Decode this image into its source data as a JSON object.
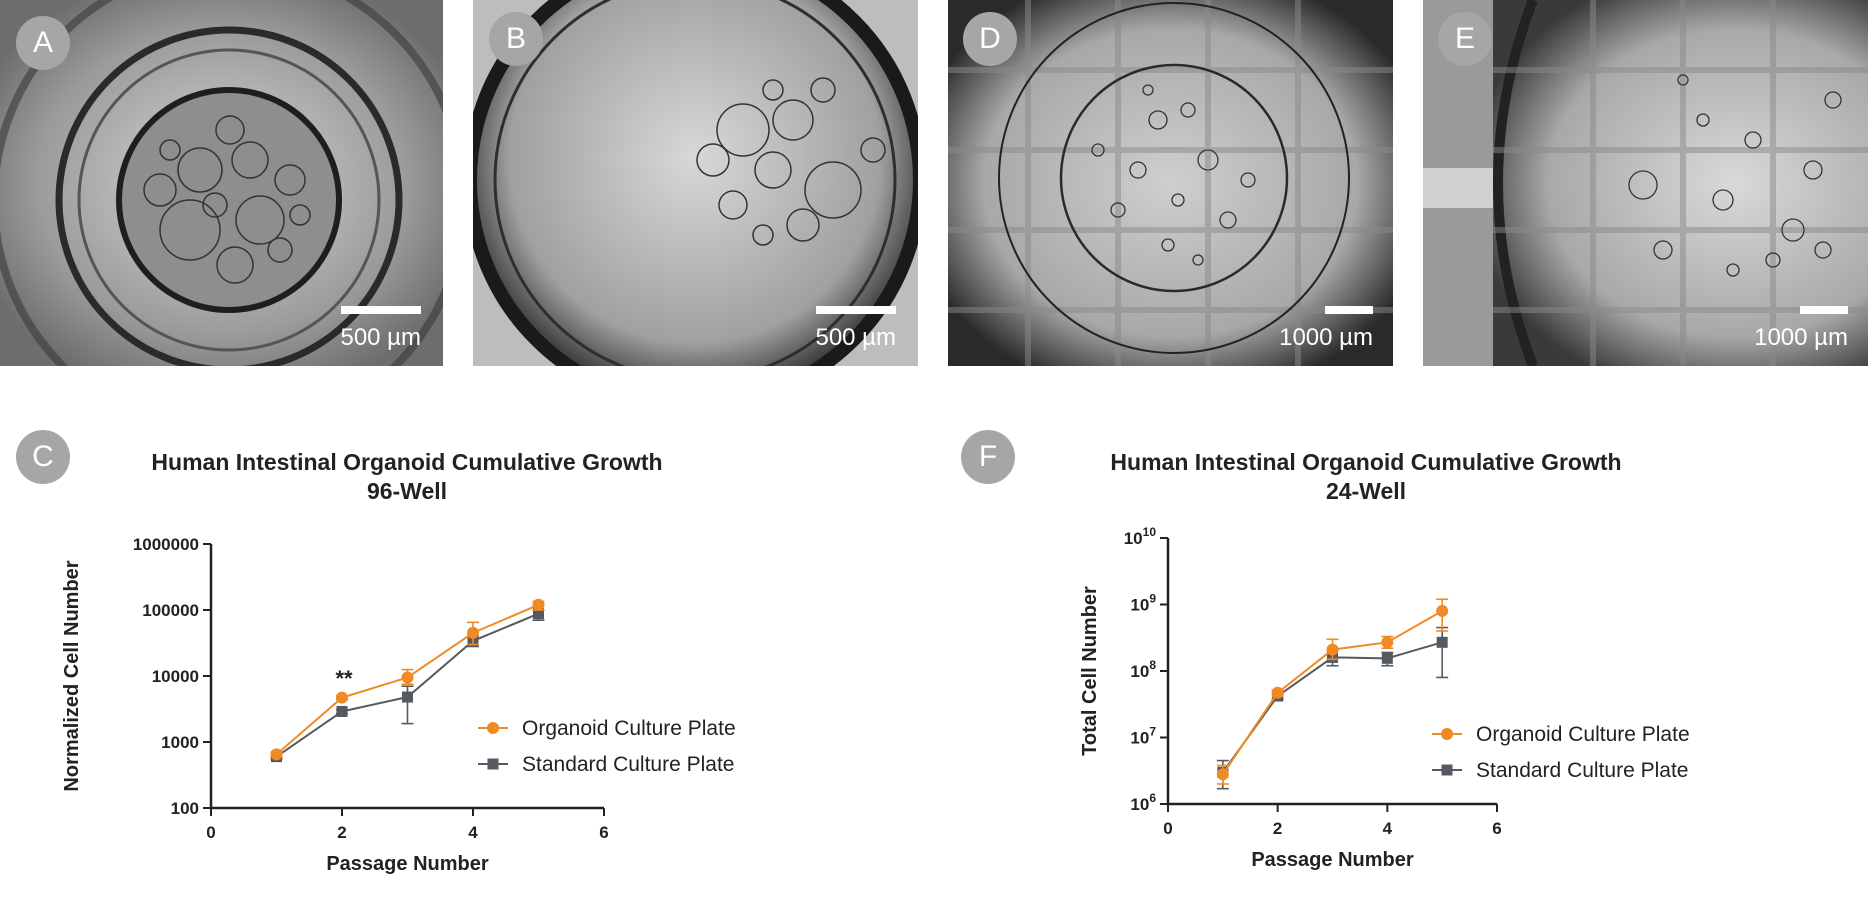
{
  "panels": [
    {
      "label": "A",
      "scale_text": "500 µm"
    },
    {
      "label": "B",
      "scale_text": "500 µm"
    },
    {
      "label": "D",
      "scale_text": "1000 µm"
    },
    {
      "label": "E",
      "scale_text": "1000 µm"
    }
  ],
  "chart_labels": {
    "c": "C",
    "f": "F"
  },
  "chart_data": [
    {
      "type": "line",
      "title": "Human Intestinal Organoid Cumulative Growth",
      "subtitle": "96-Well",
      "xlabel": "Passage Number",
      "ylabel": "Normalized Cell Number",
      "xlim": [
        0,
        6
      ],
      "xticks": [
        "0",
        "2",
        "4",
        "6"
      ],
      "ylim": [
        100,
        1000000
      ],
      "yscale": "log",
      "yticks": [
        "100",
        "1000",
        "10000",
        "100000",
        "1000000"
      ],
      "annotation": "**",
      "annotation_x": 2,
      "legend": "right",
      "series": [
        {
          "name": "Organoid Culture Plate",
          "color": "#f08a24",
          "marker": "circle",
          "x": [
            1,
            2,
            3,
            4,
            5
          ],
          "y": [
            650,
            4700,
            9500,
            45000,
            120000
          ],
          "err": [
            [
              600,
              700
            ],
            [
              4400,
              5000
            ],
            [
              7500,
              12500
            ],
            [
              30000,
              65000
            ],
            [
              100000,
              135000
            ]
          ]
        },
        {
          "name": "Standard Culture Plate",
          "color": "#555a60",
          "marker": "square",
          "x": [
            1,
            2,
            3,
            4,
            5
          ],
          "y": [
            600,
            2900,
            4800,
            34000,
            88000
          ],
          "err": [
            [
              560,
              650
            ],
            [
              2700,
              3100
            ],
            [
              1900,
              7000
            ],
            [
              28000,
              40000
            ],
            [
              70000,
              100000
            ]
          ]
        }
      ]
    },
    {
      "type": "line",
      "title": "Human Intestinal Organoid Cumulative Growth",
      "subtitle": "24-Well",
      "xlabel": "Passage Number",
      "ylabel": "Total Cell Number",
      "xlim": [
        0,
        6
      ],
      "xticks": [
        "0",
        "2",
        "4",
        "6"
      ],
      "ylim": [
        1000000,
        10000000000
      ],
      "yscale": "log",
      "yticks": [
        "10^6",
        "10^7",
        "10^8",
        "10^9",
        "10^10"
      ],
      "legend": "right",
      "series": [
        {
          "name": "Organoid Culture Plate",
          "color": "#f08a24",
          "marker": "circle",
          "x": [
            1,
            2,
            3,
            4,
            5
          ],
          "y": [
            2800000,
            47000000,
            210000000,
            270000000,
            800000000
          ],
          "err": [
            [
              2000000,
              3800000
            ],
            [
              42000000,
              52000000
            ],
            [
              150000000,
              300000000
            ],
            [
              220000000,
              330000000
            ],
            [
              400000000,
              1200000000
            ]
          ]
        },
        {
          "name": "Standard Culture Plate",
          "color": "#555a60",
          "marker": "square",
          "x": [
            1,
            2,
            3,
            4,
            5
          ],
          "y": [
            3000000,
            42000000,
            160000000,
            155000000,
            270000000
          ],
          "err": [
            [
              1700000,
              4500000
            ],
            [
              38000000,
              46000000
            ],
            [
              120000000,
              200000000
            ],
            [
              120000000,
              190000000
            ],
            [
              80000000,
              450000000
            ]
          ]
        }
      ]
    }
  ]
}
